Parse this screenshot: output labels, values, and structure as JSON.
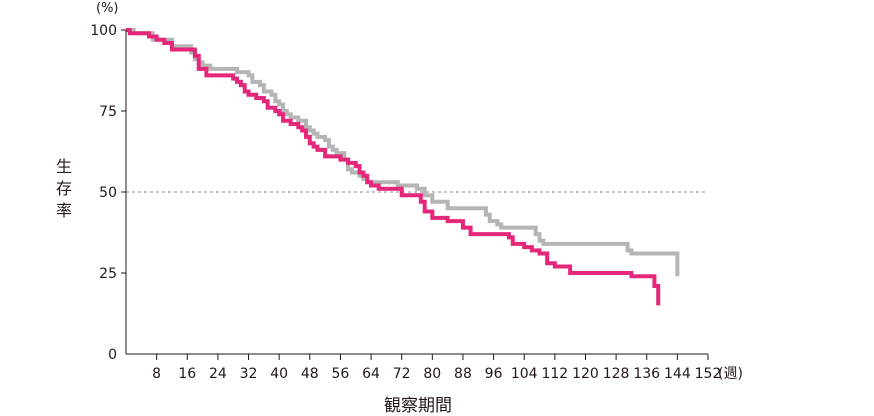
{
  "chart_data": {
    "type": "line",
    "step": true,
    "y_unit_label": "(%)",
    "x_unit_label": "(週)",
    "ylabel_chars": [
      "生",
      "存",
      "率"
    ],
    "xlabel": "観察期間",
    "xlim": [
      0,
      152
    ],
    "ylim": [
      0,
      100
    ],
    "yticks": [
      0,
      25,
      50,
      75,
      100
    ],
    "xticks": [
      8,
      16,
      24,
      32,
      40,
      48,
      56,
      64,
      72,
      80,
      88,
      96,
      104,
      112,
      120,
      128,
      136,
      144,
      152
    ],
    "reference_line": {
      "y": 50,
      "style": "dashed"
    },
    "grid": false,
    "series": [
      {
        "color": "#b5b5b5",
        "x": [
          0,
          2,
          7,
          12,
          17,
          18,
          19,
          20,
          22,
          29,
          32,
          33,
          35,
          36,
          38,
          39,
          40,
          41,
          42,
          43,
          45,
          47,
          48,
          49,
          50,
          52,
          53,
          54,
          55,
          57,
          58,
          59,
          61,
          62,
          63,
          64,
          65,
          67,
          71,
          76,
          78,
          80,
          84,
          94,
          95,
          97,
          98,
          107,
          108,
          109,
          110,
          131,
          132,
          144
        ],
        "y": [
          100,
          99,
          97,
          95,
          93,
          91,
          90,
          89,
          88,
          87,
          86,
          84,
          83,
          81,
          80,
          78,
          77,
          75,
          74,
          73,
          72,
          70,
          69,
          68,
          67,
          66,
          64,
          63,
          62,
          60,
          57,
          56,
          55,
          54,
          53,
          53,
          53,
          53,
          52,
          51,
          49,
          47,
          45,
          43,
          41,
          40,
          39,
          37,
          35,
          34,
          34,
          32,
          31,
          24
        ]
      },
      {
        "color": "#e4277a",
        "x": [
          0,
          1,
          6,
          8,
          10,
          12,
          18,
          19,
          21,
          28,
          29,
          30,
          31,
          32,
          34,
          36,
          37,
          39,
          40,
          41,
          43,
          45,
          46,
          47,
          48,
          49,
          50,
          52,
          56,
          58,
          60,
          61,
          62,
          63,
          64,
          66,
          68,
          72,
          77,
          78,
          80,
          84,
          88,
          90,
          100,
          101,
          104,
          106,
          108,
          110,
          112,
          116,
          132,
          138,
          139
        ],
        "y": [
          100,
          99,
          98,
          97,
          96,
          94,
          92,
          88,
          86,
          85,
          84,
          83,
          81,
          80,
          79,
          78,
          76,
          75,
          74,
          72,
          71,
          70,
          69,
          67,
          65,
          64,
          63,
          61,
          60,
          59,
          58,
          56,
          55,
          53,
          52,
          51,
          51,
          49,
          47,
          44,
          42,
          41,
          39,
          37,
          36,
          34,
          33,
          32,
          31,
          28,
          27,
          25,
          24,
          21,
          15
        ]
      }
    ]
  }
}
